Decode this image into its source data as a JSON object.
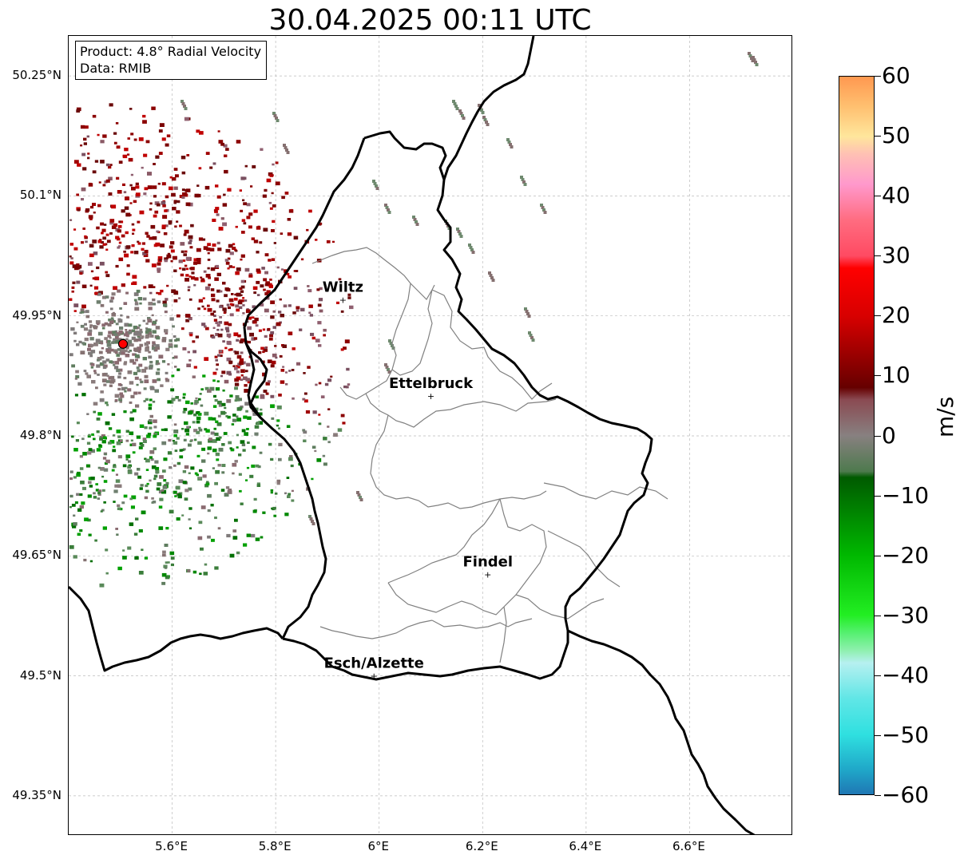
{
  "title": "30.04.2025 00:11 UTC",
  "info_box": {
    "product": "Product: 4.8° Radial Velocity",
    "data": "Data: RMIB"
  },
  "axes": {
    "lat_labels": [
      "50.25°N",
      "50.1°N",
      "49.95°N",
      "49.8°N",
      "49.65°N",
      "49.5°N",
      "49.35°N"
    ],
    "lon_labels": [
      "5.6°E",
      "5.8°E",
      "6°E",
      "6.2°E",
      "6.4°E",
      "6.6°E"
    ],
    "lat_values": [
      50.25,
      50.1,
      49.95,
      49.8,
      49.65,
      49.5,
      49.35
    ],
    "lon_values": [
      5.6,
      5.8,
      6.0,
      6.2,
      6.4,
      6.6
    ],
    "lon_range": [
      5.4,
      6.8
    ],
    "lat_range": [
      49.3,
      50.3
    ],
    "grid": true
  },
  "cities": [
    {
      "name": "Wiltz",
      "lon": 5.93,
      "lat": 49.97
    },
    {
      "name": "Ettelbruck",
      "lon": 6.1,
      "lat": 49.85
    },
    {
      "name": "Findel",
      "lon": 6.21,
      "lat": 49.627
    },
    {
      "name": "Esch/Alzette",
      "lon": 5.99,
      "lat": 49.5
    }
  ],
  "radar_site": {
    "lon": 5.505,
    "lat": 49.915,
    "color": "#ff0000"
  },
  "colorbar": {
    "label": "m/s",
    "min": -60,
    "max": 60,
    "ticks": [
      "60",
      "50",
      "40",
      "30",
      "20",
      "10",
      "0",
      "−10",
      "−20",
      "−30",
      "−40",
      "−50",
      "−60"
    ],
    "stops": [
      {
        "v": -60,
        "c": "#1f77b4"
      },
      {
        "v": -56,
        "c": "#1fa6c8"
      },
      {
        "v": -50,
        "c": "#2fe0e0"
      },
      {
        "v": -44,
        "c": "#60e6e6"
      },
      {
        "v": -38,
        "c": "#b6f0f0"
      },
      {
        "v": -36,
        "c": "#90f0b0"
      },
      {
        "v": -33,
        "c": "#55f070"
      },
      {
        "v": -30,
        "c": "#22ee22"
      },
      {
        "v": -20,
        "c": "#00b800"
      },
      {
        "v": -7,
        "c": "#005a00"
      },
      {
        "v": -6,
        "c": "#4e7a4e"
      },
      {
        "v": 0,
        "c": "#888080"
      },
      {
        "v": 6,
        "c": "#8a4a52"
      },
      {
        "v": 8,
        "c": "#660000"
      },
      {
        "v": 20,
        "c": "#d80000"
      },
      {
        "v": 28,
        "c": "#ff0000"
      },
      {
        "v": 30,
        "c": "#ff4a62"
      },
      {
        "v": 36,
        "c": "#ff6c80"
      },
      {
        "v": 42,
        "c": "#ff99cc"
      },
      {
        "v": 47,
        "c": "#ffc0b4"
      },
      {
        "v": 50,
        "c": "#ffe69c"
      },
      {
        "v": 55,
        "c": "#ffc070"
      },
      {
        "v": 60,
        "c": "#ff9850"
      }
    ]
  },
  "colors": {
    "border": "#000000",
    "cantons": "#808080",
    "grid": "#bbbbbb",
    "velocity_inbound": "#008800",
    "velocity_zero": "#807878",
    "velocity_outbound": "#8b0000"
  }
}
